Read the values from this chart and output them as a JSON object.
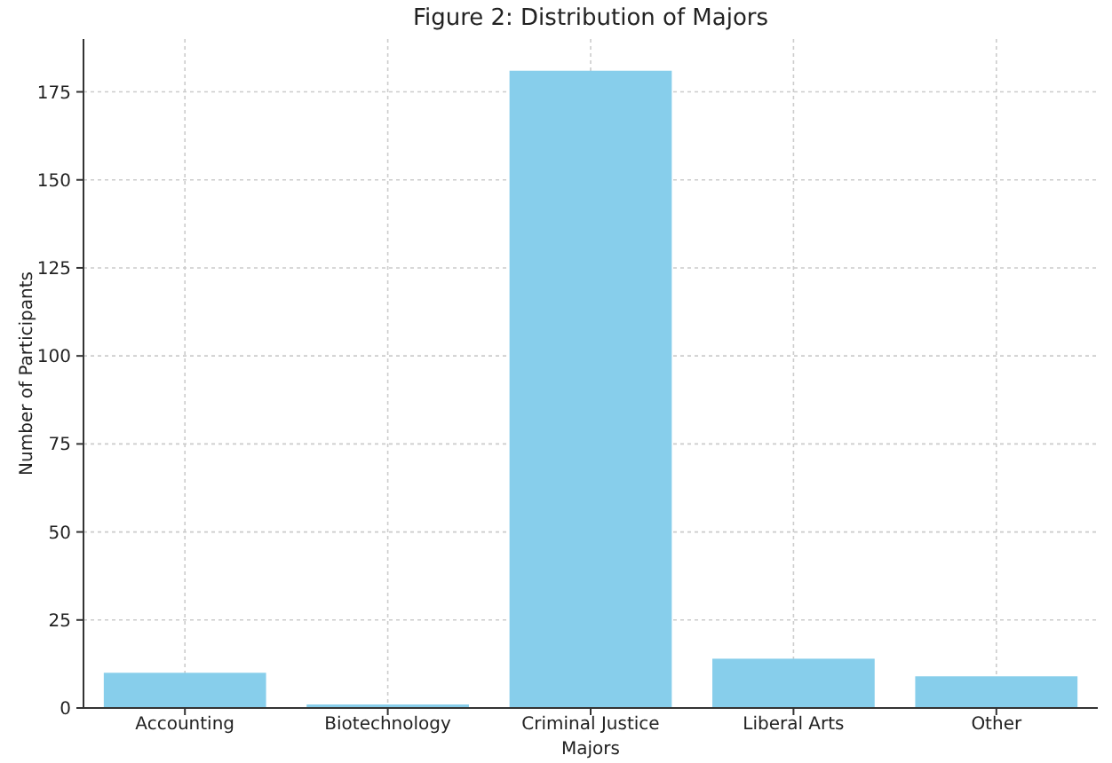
{
  "chart_data": {
    "type": "bar",
    "title": "Figure 2: Distribution of Majors",
    "xlabel": "Majors",
    "ylabel": "Number of Participants",
    "categories": [
      "Accounting",
      "Biotechnology",
      "Criminal Justice",
      "Liberal Arts",
      "Other"
    ],
    "values": [
      10,
      1,
      181,
      14,
      9
    ],
    "color": "#87ceeb",
    "ylim": [
      0,
      190
    ],
    "yticks": [
      0,
      25,
      50,
      75,
      100,
      125,
      150,
      175
    ],
    "grid": true
  }
}
